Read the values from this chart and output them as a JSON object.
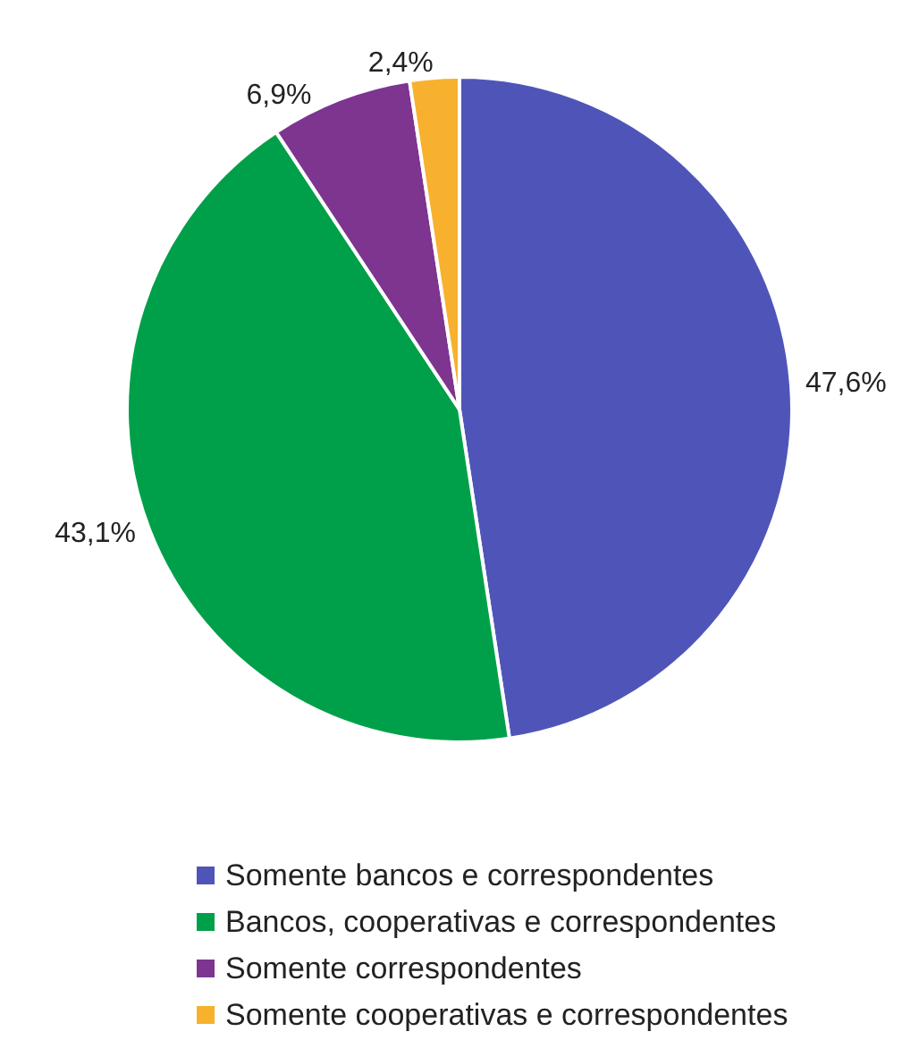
{
  "chart_data": {
    "type": "pie",
    "categories": [
      "Somente bancos e correspondentes",
      "Bancos, cooperativas e correspondentes",
      "Somente correspondentes",
      "Somente cooperativas e correspondentes"
    ],
    "values": [
      47.6,
      43.1,
      6.9,
      2.4
    ],
    "colors": [
      "#4f55b8",
      "#00a04a",
      "#7d3590",
      "#f7b12e"
    ],
    "value_labels": [
      "47,6%",
      "43,1%",
      "6,9%",
      "2,4%"
    ],
    "legend": "bottom"
  }
}
